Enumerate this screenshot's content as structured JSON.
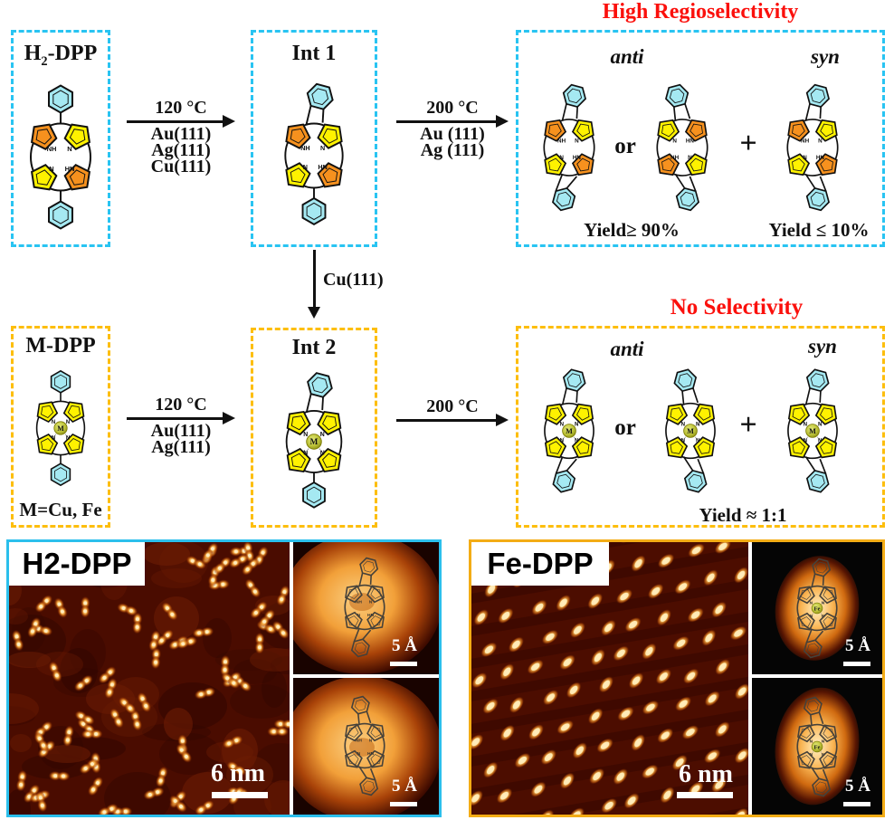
{
  "palette": {
    "cyan_border": "#29C4F2",
    "gold_border": "#FDBE0D",
    "red_title": "#FB100C",
    "orange_ring": "#F6911E",
    "yellow_ring": "#FFF200",
    "cyan_ring": "#A5E9F2",
    "metal_fill": "#B9BF35",
    "stm_background": "#4A0C00",
    "stm_blob": "#FFE9B5"
  },
  "scheme": {
    "high_title": "High Regioselectivity",
    "no_title": "No Selectivity",
    "boxes": {
      "h2dpp": {
        "pre": "H",
        "sub": "2",
        "post": "-DPP"
      },
      "int1": "Int 1",
      "mdpp": "M-DPP",
      "mdpp_note": "M=Cu, Fe",
      "int2": "Int 2"
    },
    "arrows": {
      "a1": {
        "above": "120 °C",
        "below": [
          "Au(111)",
          "Ag(111)",
          "Cu(111)"
        ]
      },
      "a2": {
        "above": "200 °C",
        "below": [
          "Au (111)",
          "Ag (111)"
        ]
      },
      "av": {
        "label": "Cu(111)"
      },
      "a3": {
        "above": "120 °C",
        "below": [
          "Au(111)",
          "Ag(111)"
        ]
      },
      "a4": {
        "above": "200 °C"
      }
    },
    "products_top": {
      "anti": "anti",
      "syn": "syn",
      "or": "or",
      "plus": "+",
      "yield_anti": "Yield≥ 90%",
      "yield_syn": "Yield ≤ 10%"
    },
    "products_bottom": {
      "anti": "anti",
      "syn": "syn",
      "or": "or",
      "plus": "+",
      "yield": "Yield ≈ 1:1"
    }
  },
  "molecules": {
    "h2dpp": {
      "top": "phenyl",
      "bottom": "phenyl",
      "rings": [
        "orange",
        "yellow",
        "yellow",
        "orange"
      ],
      "labels": [
        "NH",
        "N",
        "N",
        "HN"
      ]
    },
    "int1": {
      "top": "fusedR",
      "bottom": "phenyl",
      "rings": [
        "orange",
        "yellow",
        "yellow",
        "orange"
      ],
      "labels": [
        "NH",
        "N",
        "N",
        "HN"
      ]
    },
    "anti1": {
      "top": "fusedR",
      "bottom": "fusedL",
      "rings": [
        "orange",
        "yellow",
        "yellow",
        "orange"
      ],
      "labels": [
        "NH",
        "N",
        "N",
        "HN"
      ]
    },
    "anti2": {
      "top": "fusedL",
      "bottom": "fusedR",
      "rings": [
        "yellow",
        "orange",
        "orange",
        "yellow"
      ],
      "labels": [
        "N",
        "HN",
        "NH",
        "N"
      ]
    },
    "syn1": {
      "top": "fusedR",
      "bottom": "fusedR",
      "rings": [
        "orange",
        "yellow",
        "yellow",
        "orange"
      ],
      "labels": [
        "NH",
        "N",
        "N",
        "HN"
      ]
    },
    "mdpp": {
      "top": "phenyl",
      "bottom": "phenyl",
      "rings": [
        "yellow",
        "yellow",
        "yellow",
        "yellow"
      ],
      "labels": [
        "N",
        "N",
        "N",
        "N"
      ],
      "center": "M"
    },
    "int2": {
      "top": "fusedR",
      "bottom": "phenyl",
      "rings": [
        "yellow",
        "yellow",
        "yellow",
        "yellow"
      ],
      "labels": [
        "N",
        "N",
        "N",
        "N"
      ],
      "center": "M"
    },
    "manti1": {
      "top": "fusedR",
      "bottom": "fusedL",
      "rings": [
        "yellow",
        "yellow",
        "yellow",
        "yellow"
      ],
      "labels": [
        "N",
        "N",
        "N",
        "N"
      ],
      "center": "M"
    },
    "manti2": {
      "top": "fusedL",
      "bottom": "fusedR",
      "rings": [
        "yellow",
        "yellow",
        "yellow",
        "yellow"
      ],
      "labels": [
        "N",
        "N",
        "N",
        "N"
      ],
      "center": "M"
    },
    "msyn": {
      "top": "fusedR",
      "bottom": "fusedR",
      "rings": [
        "yellow",
        "yellow",
        "yellow",
        "yellow"
      ],
      "labels": [
        "N",
        "N",
        "N",
        "N"
      ],
      "center": "M"
    },
    "skelA": {
      "skeleton": true,
      "top": "fusedR",
      "bottom": "fusedL",
      "rings": [
        "none",
        "none",
        "none",
        "none"
      ],
      "labels": [
        "NH",
        "N",
        "N",
        "HN"
      ]
    },
    "skelB": {
      "skeleton": true,
      "top": "fusedL",
      "bottom": "fusedR",
      "rings": [
        "none",
        "none",
        "none",
        "none"
      ],
      "labels": [
        "NH",
        "N",
        "N",
        "HN"
      ]
    },
    "skelFeA": {
      "skeleton": true,
      "top": "fusedR",
      "bottom": "fusedL",
      "rings": [
        "none",
        "none",
        "none",
        "none"
      ],
      "labels": [
        "N",
        "N",
        "N",
        "N"
      ],
      "center": "Fe"
    },
    "skelFeB": {
      "skeleton": true,
      "top": "fusedL",
      "bottom": "fusedR",
      "rings": [
        "none",
        "none",
        "none",
        "none"
      ],
      "labels": [
        "N",
        "N",
        "N",
        "N"
      ],
      "center": "Fe"
    }
  },
  "stm": {
    "left": {
      "label": "H2-DPP",
      "scalebar": "6 nm",
      "inset_scalebar": "5 Å"
    },
    "right": {
      "label": "Fe-DPP",
      "scalebar": "6 nm",
      "inset_scalebar": "5 Å"
    }
  }
}
